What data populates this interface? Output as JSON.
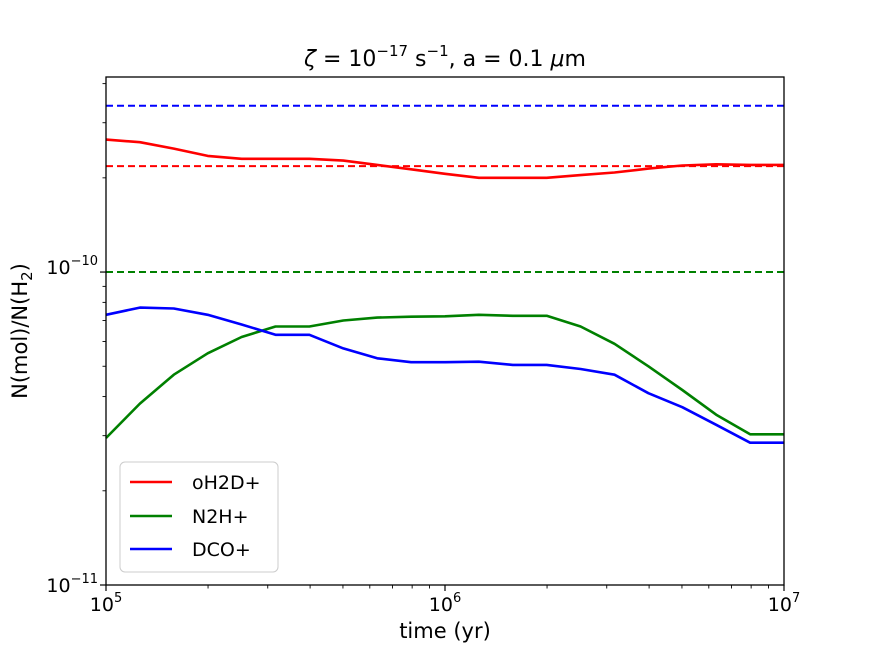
{
  "chart_data": {
    "type": "line",
    "title": {
      "symbol": "ζ",
      "pre": " = 10",
      "exp1": "−17",
      "mid": " s",
      "exp2": "−1",
      "post": ",  a = 0.1 ",
      "mu": "μ",
      "unit": "m"
    },
    "xlabel": "time (yr)",
    "ylabel": {
      "pre": "N(mol)/N(H",
      "sub": "2",
      "post": ")"
    },
    "xscale": "log",
    "yscale": "log",
    "xlim": [
      100000,
      10000000
    ],
    "ylim": [
      1e-11,
      4.2e-10
    ],
    "x_ticks": [
      {
        "value": 100000,
        "base": "10",
        "exp": "5"
      },
      {
        "value": 1000000,
        "base": "10",
        "exp": "6"
      },
      {
        "value": 10000000,
        "base": "10",
        "exp": "7"
      }
    ],
    "y_ticks": [
      {
        "value": 1e-11,
        "base": "10",
        "exp": "−11"
      },
      {
        "value": 1e-10,
        "base": "10",
        "exp": "−10"
      }
    ],
    "y_minor_ticks": [
      2e-11,
      3e-11,
      4e-11,
      5e-11,
      6e-11,
      7e-11,
      8e-11,
      9e-11,
      2e-10,
      3e-10,
      4e-10
    ],
    "x_minor_ticks": [
      200000,
      300000,
      400000,
      500000,
      600000,
      700000,
      800000,
      900000,
      2000000,
      3000000,
      4000000,
      5000000,
      6000000,
      7000000,
      8000000,
      9000000
    ],
    "x": [
      100000,
      125890,
      158490,
      199530,
      251190,
      316230,
      398110,
      501190,
      630960,
      794330,
      1000000,
      1258900,
      1584900,
      1995300,
      2511900,
      3162300,
      3981100,
      5011900,
      6309600,
      7943300,
      10000000
    ],
    "series": [
      {
        "name": "oH2D+",
        "color": "#ff0000",
        "values": [
          2.65e-10,
          2.6e-10,
          2.48e-10,
          2.35e-10,
          2.3e-10,
          2.3e-10,
          2.3e-10,
          2.27e-10,
          2.2e-10,
          2.13e-10,
          2.06e-10,
          2e-10,
          2e-10,
          2e-10,
          2.04e-10,
          2.08e-10,
          2.14e-10,
          2.19e-10,
          2.21e-10,
          2.2e-10,
          2.2e-10
        ]
      },
      {
        "name": "N2H+",
        "color": "#008000",
        "values": [
          2.95e-11,
          3.8e-11,
          4.7e-11,
          5.5e-11,
          6.2e-11,
          6.7e-11,
          6.7e-11,
          7e-11,
          7.15e-11,
          7.2e-11,
          7.22e-11,
          7.3e-11,
          7.25e-11,
          7.25e-11,
          6.7e-11,
          5.9e-11,
          5e-11,
          4.2e-11,
          3.5e-11,
          3.03e-11,
          3.03e-11
        ]
      },
      {
        "name": "DCO+",
        "color": "#0000ff",
        "values": [
          7.3e-11,
          7.7e-11,
          7.65e-11,
          7.3e-11,
          6.8e-11,
          6.3e-11,
          6.3e-11,
          5.7e-11,
          5.3e-11,
          5.15e-11,
          5.15e-11,
          5.17e-11,
          5.05e-11,
          5.05e-11,
          4.9e-11,
          4.7e-11,
          4.1e-11,
          3.7e-11,
          3.25e-11,
          2.85e-11,
          2.85e-11
        ]
      }
    ],
    "reference_lines": [
      {
        "series": "DCO+",
        "color": "#0000ff",
        "y": 3.4e-10
      },
      {
        "series": "oH2D+",
        "color": "#ff0000",
        "y": 2.18e-10
      },
      {
        "series": "N2H+",
        "color": "#008000",
        "y": 1e-10
      }
    ],
    "legend": {
      "placement": "lower-left",
      "entries": [
        {
          "label": "oH2D+",
          "color": "#ff0000"
        },
        {
          "label": "N2H+",
          "color": "#008000"
        },
        {
          "label": "DCO+",
          "color": "#0000ff"
        }
      ]
    },
    "grid": false
  }
}
